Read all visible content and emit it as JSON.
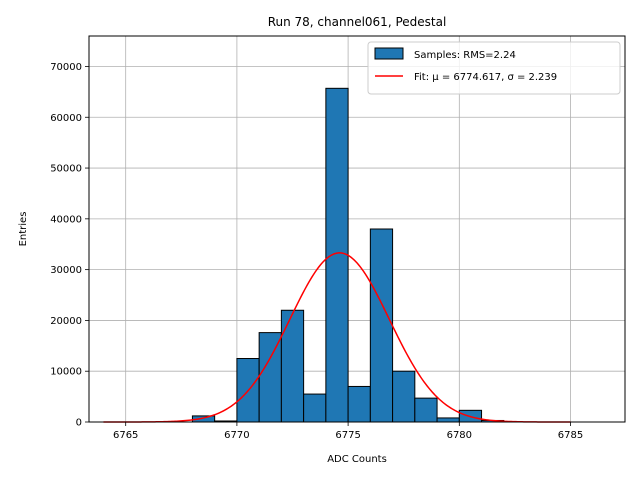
{
  "chart_data": {
    "type": "bar",
    "title": "Run 78, channel061, Pedestal",
    "xlabel": "ADC Counts",
    "ylabel": "Entries",
    "xlim": [
      6763.35,
      6787.45
    ],
    "ylim": [
      0,
      76000
    ],
    "x_ticks": [
      6765,
      6770,
      6775,
      6780,
      6785
    ],
    "y_ticks": [
      0,
      10000,
      20000,
      30000,
      40000,
      50000,
      60000,
      70000
    ],
    "grid": true,
    "legend_position": "top-right",
    "bin_width": 1,
    "bins": [
      {
        "left": 6768,
        "value": 1200
      },
      {
        "left": 6769,
        "value": 200
      },
      {
        "left": 6770,
        "value": 12500
      },
      {
        "left": 6771,
        "value": 17600
      },
      {
        "left": 6772,
        "value": 22000
      },
      {
        "left": 6773,
        "value": 5500
      },
      {
        "left": 6774,
        "value": 65700
      },
      {
        "left": 6775,
        "value": 7000
      },
      {
        "left": 6776,
        "value": 38000
      },
      {
        "left": 6777,
        "value": 10000
      },
      {
        "left": 6778,
        "value": 4700
      },
      {
        "left": 6779,
        "value": 800
      },
      {
        "left": 6780,
        "value": 2300
      },
      {
        "left": 6781,
        "value": 300
      }
    ],
    "fit": {
      "mu": 6774.617,
      "sigma": 2.239,
      "amplitude": 33300,
      "x_range": [
        6764,
        6785
      ]
    },
    "series": [
      {
        "name": "Samples: RMS=2.24",
        "type": "histogram",
        "color": "#1f77b4"
      },
      {
        "name": "Fit: μ = 6774.617, σ = 2.239",
        "type": "line",
        "color": "#ff0000"
      }
    ]
  }
}
